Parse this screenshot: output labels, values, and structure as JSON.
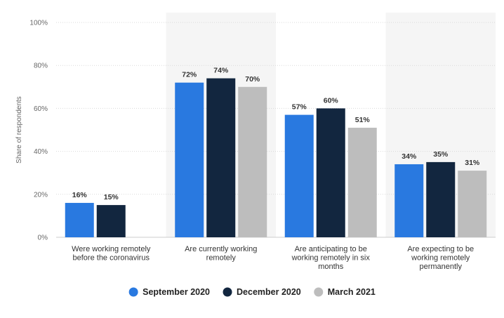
{
  "chart_data": {
    "type": "bar",
    "ylabel": "Share of respondents",
    "ylim": [
      0,
      100
    ],
    "yticks": [
      "0%",
      "20%",
      "40%",
      "60%",
      "80%",
      "100%"
    ],
    "ytick_values": [
      0,
      20,
      40,
      60,
      80,
      100
    ],
    "grid": true,
    "legend_position": "bottom",
    "categories": [
      [
        "Were working remotely",
        "before the coronavirus"
      ],
      [
        "Are currently working",
        "remotely"
      ],
      [
        "Are anticipating to be",
        "working remotely in six",
        "months"
      ],
      [
        "Are expecting to be",
        "working remotely",
        "permanently"
      ]
    ],
    "series": [
      {
        "name": "September 2020",
        "color": "#2979e0",
        "values": [
          16,
          72,
          57,
          34
        ]
      },
      {
        "name": "December 2020",
        "color": "#12263f",
        "values": [
          15,
          74,
          60,
          35
        ]
      },
      {
        "name": "March 2021",
        "color": "#bdbdbd",
        "values": [
          null,
          70,
          51,
          31
        ]
      }
    ],
    "shaded_band_color": "#f5f5f5"
  }
}
